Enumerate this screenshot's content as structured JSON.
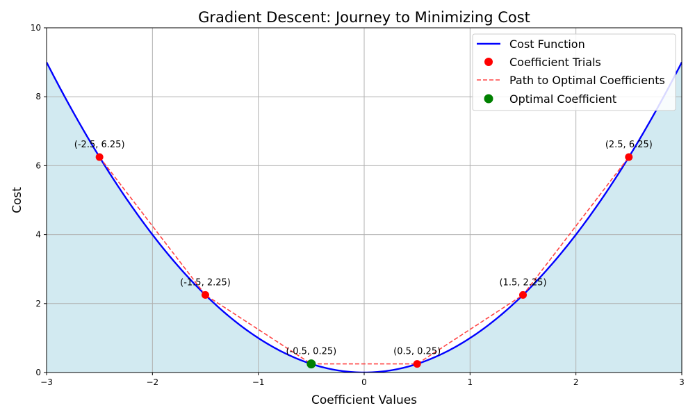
{
  "chart_data": {
    "type": "line",
    "title": "Gradient Descent: Journey to Minimizing Cost",
    "xlabel": "Coefficient Values",
    "ylabel": "Cost",
    "xlim": [
      -3,
      3
    ],
    "ylim": [
      0,
      10
    ],
    "xticks": [
      -3,
      -2,
      -1,
      0,
      1,
      2,
      3
    ],
    "yticks": [
      0,
      2,
      4,
      6,
      8,
      10
    ],
    "grid": true,
    "legend_position": "top-right",
    "cost_function": {
      "name": "Cost Function",
      "expression": "y = x^2",
      "color": "#0000ff",
      "fill_color": "#add8e6"
    },
    "trials": {
      "name": "Coefficient Trials",
      "color": "#ff0000",
      "points": [
        {
          "x": -2.5,
          "y": 6.25,
          "label": "(-2.5, 6.25)"
        },
        {
          "x": -1.5,
          "y": 2.25,
          "label": "(-1.5, 2.25)"
        },
        {
          "x": -0.5,
          "y": 0.25,
          "label": "(-0.5, 0.25)"
        },
        {
          "x": 0.5,
          "y": 0.25,
          "label": "(0.5, 0.25)"
        },
        {
          "x": 1.5,
          "y": 2.25,
          "label": "(1.5, 2.25)"
        },
        {
          "x": 2.5,
          "y": 6.25,
          "label": "(2.5, 6.25)"
        }
      ]
    },
    "path": {
      "name": "Path to Optimal Coefficients",
      "color": "#ff4444"
    },
    "optimal": {
      "name": "Optimal Coefficient",
      "x": -0.5,
      "y": 0.25,
      "color": "#008000"
    }
  }
}
